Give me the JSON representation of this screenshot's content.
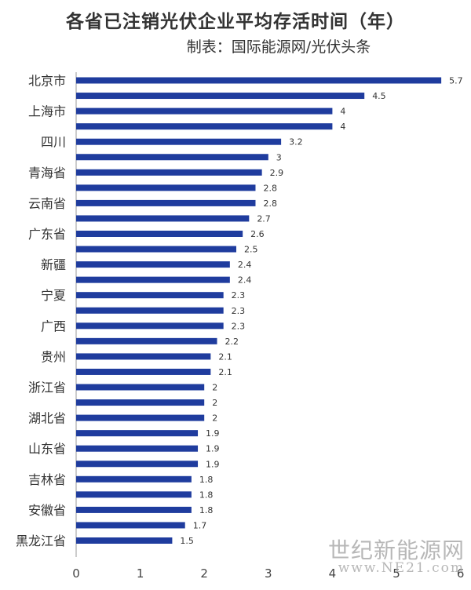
{
  "title": "各省已注销光伏企业平均存活时间（年）",
  "subtitle": "制表：国际能源网/光伏头条",
  "watermark": {
    "line1": "世纪新能源网",
    "line2": "www.NE21.com"
  },
  "colors": {
    "bar": "#1f3c9e",
    "axis": "#999999",
    "text": "#333333"
  },
  "chart_data": {
    "type": "bar",
    "orientation": "horizontal",
    "title": "各省已注销光伏企业平均存活时间（年）",
    "xlim": [
      0,
      6
    ],
    "xticks": [
      "0",
      "1",
      "2",
      "3",
      "4",
      "5",
      "6"
    ],
    "grid": false,
    "category_labels": [
      "北京市",
      "",
      "上海市",
      "",
      "四川",
      "",
      "青海省",
      "",
      "云南省",
      "",
      "广东省",
      "",
      "新疆",
      "",
      "宁夏",
      "",
      "广西",
      "",
      "贵州",
      "",
      "浙江省",
      "",
      "湖北省",
      "",
      "山东省",
      "",
      "吉林省",
      "",
      "安徽省",
      "",
      "黑龙江省"
    ],
    "values": [
      5.7,
      4.5,
      4,
      4,
      3.2,
      3,
      2.9,
      2.8,
      2.8,
      2.7,
      2.6,
      2.5,
      2.4,
      2.4,
      2.3,
      2.3,
      2.3,
      2.2,
      2.1,
      2.1,
      2,
      2,
      2,
      1.9,
      1.9,
      1.9,
      1.8,
      1.8,
      1.8,
      1.7,
      1.5
    ],
    "value_labels": [
      "5.7",
      "4.5",
      "4",
      "4",
      "3.2",
      "3",
      "2.9",
      "2.8",
      "2.8",
      "2.7",
      "2.6",
      "2.5",
      "2.4",
      "2.4",
      "2.3",
      "2.3",
      "2.3",
      "2.2",
      "2.1",
      "2.1",
      "2",
      "2",
      "2",
      "1.9",
      "1.9",
      "1.9",
      "1.8",
      "1.8",
      "1.8",
      "1.7",
      "1.5"
    ]
  }
}
